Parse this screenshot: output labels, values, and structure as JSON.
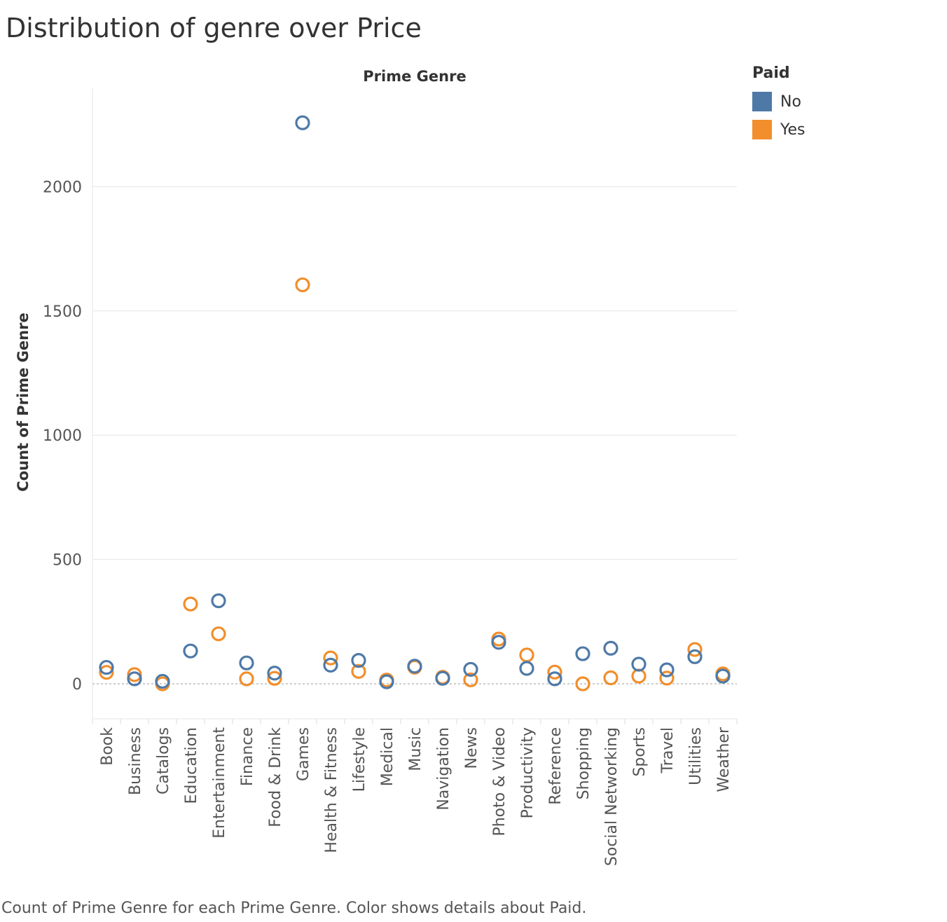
{
  "title": "Distribution of genre over Price",
  "caption": "Count of Prime Genre for each Prime Genre.  Color shows details about Paid.",
  "legend": {
    "title": "Paid",
    "items": [
      {
        "label": "No",
        "color": "#4e79a7"
      },
      {
        "label": "Yes",
        "color": "#f28e2b"
      }
    ]
  },
  "chart_data": {
    "type": "scatter",
    "title": "Distribution of genre over Price",
    "top_label": "Prime Genre",
    "ylabel": "Count of Prime Genre",
    "ylim": [
      -140,
      2400
    ],
    "yticks": [
      0,
      500,
      1000,
      1500,
      2000
    ],
    "grid": true,
    "legend_position": "top-right",
    "categories": [
      "Book",
      "Business",
      "Catalogs",
      "Education",
      "Entertainment",
      "Finance",
      "Food & Drink",
      "Games",
      "Health & Fitness",
      "Lifestyle",
      "Medical",
      "Music",
      "Navigation",
      "News",
      "Photo & Video",
      "Productivity",
      "Reference",
      "Shopping",
      "Social Networking",
      "Sports",
      "Travel",
      "Utilities",
      "Weather"
    ],
    "series": [
      {
        "name": "No",
        "color": "#4e79a7",
        "values": [
          66,
          20,
          10,
          132,
          334,
          84,
          43,
          2257,
          75,
          94,
          8,
          71,
          22,
          58,
          167,
          62,
          20,
          121,
          143,
          79,
          56,
          109,
          31
        ]
      },
      {
        "name": "Yes",
        "color": "#f28e2b",
        "values": [
          46,
          37,
          0,
          321,
          201,
          20,
          22,
          1605,
          104,
          50,
          15,
          67,
          26,
          16,
          180,
          116,
          47,
          0,
          24,
          31,
          23,
          138,
          40
        ]
      }
    ]
  }
}
